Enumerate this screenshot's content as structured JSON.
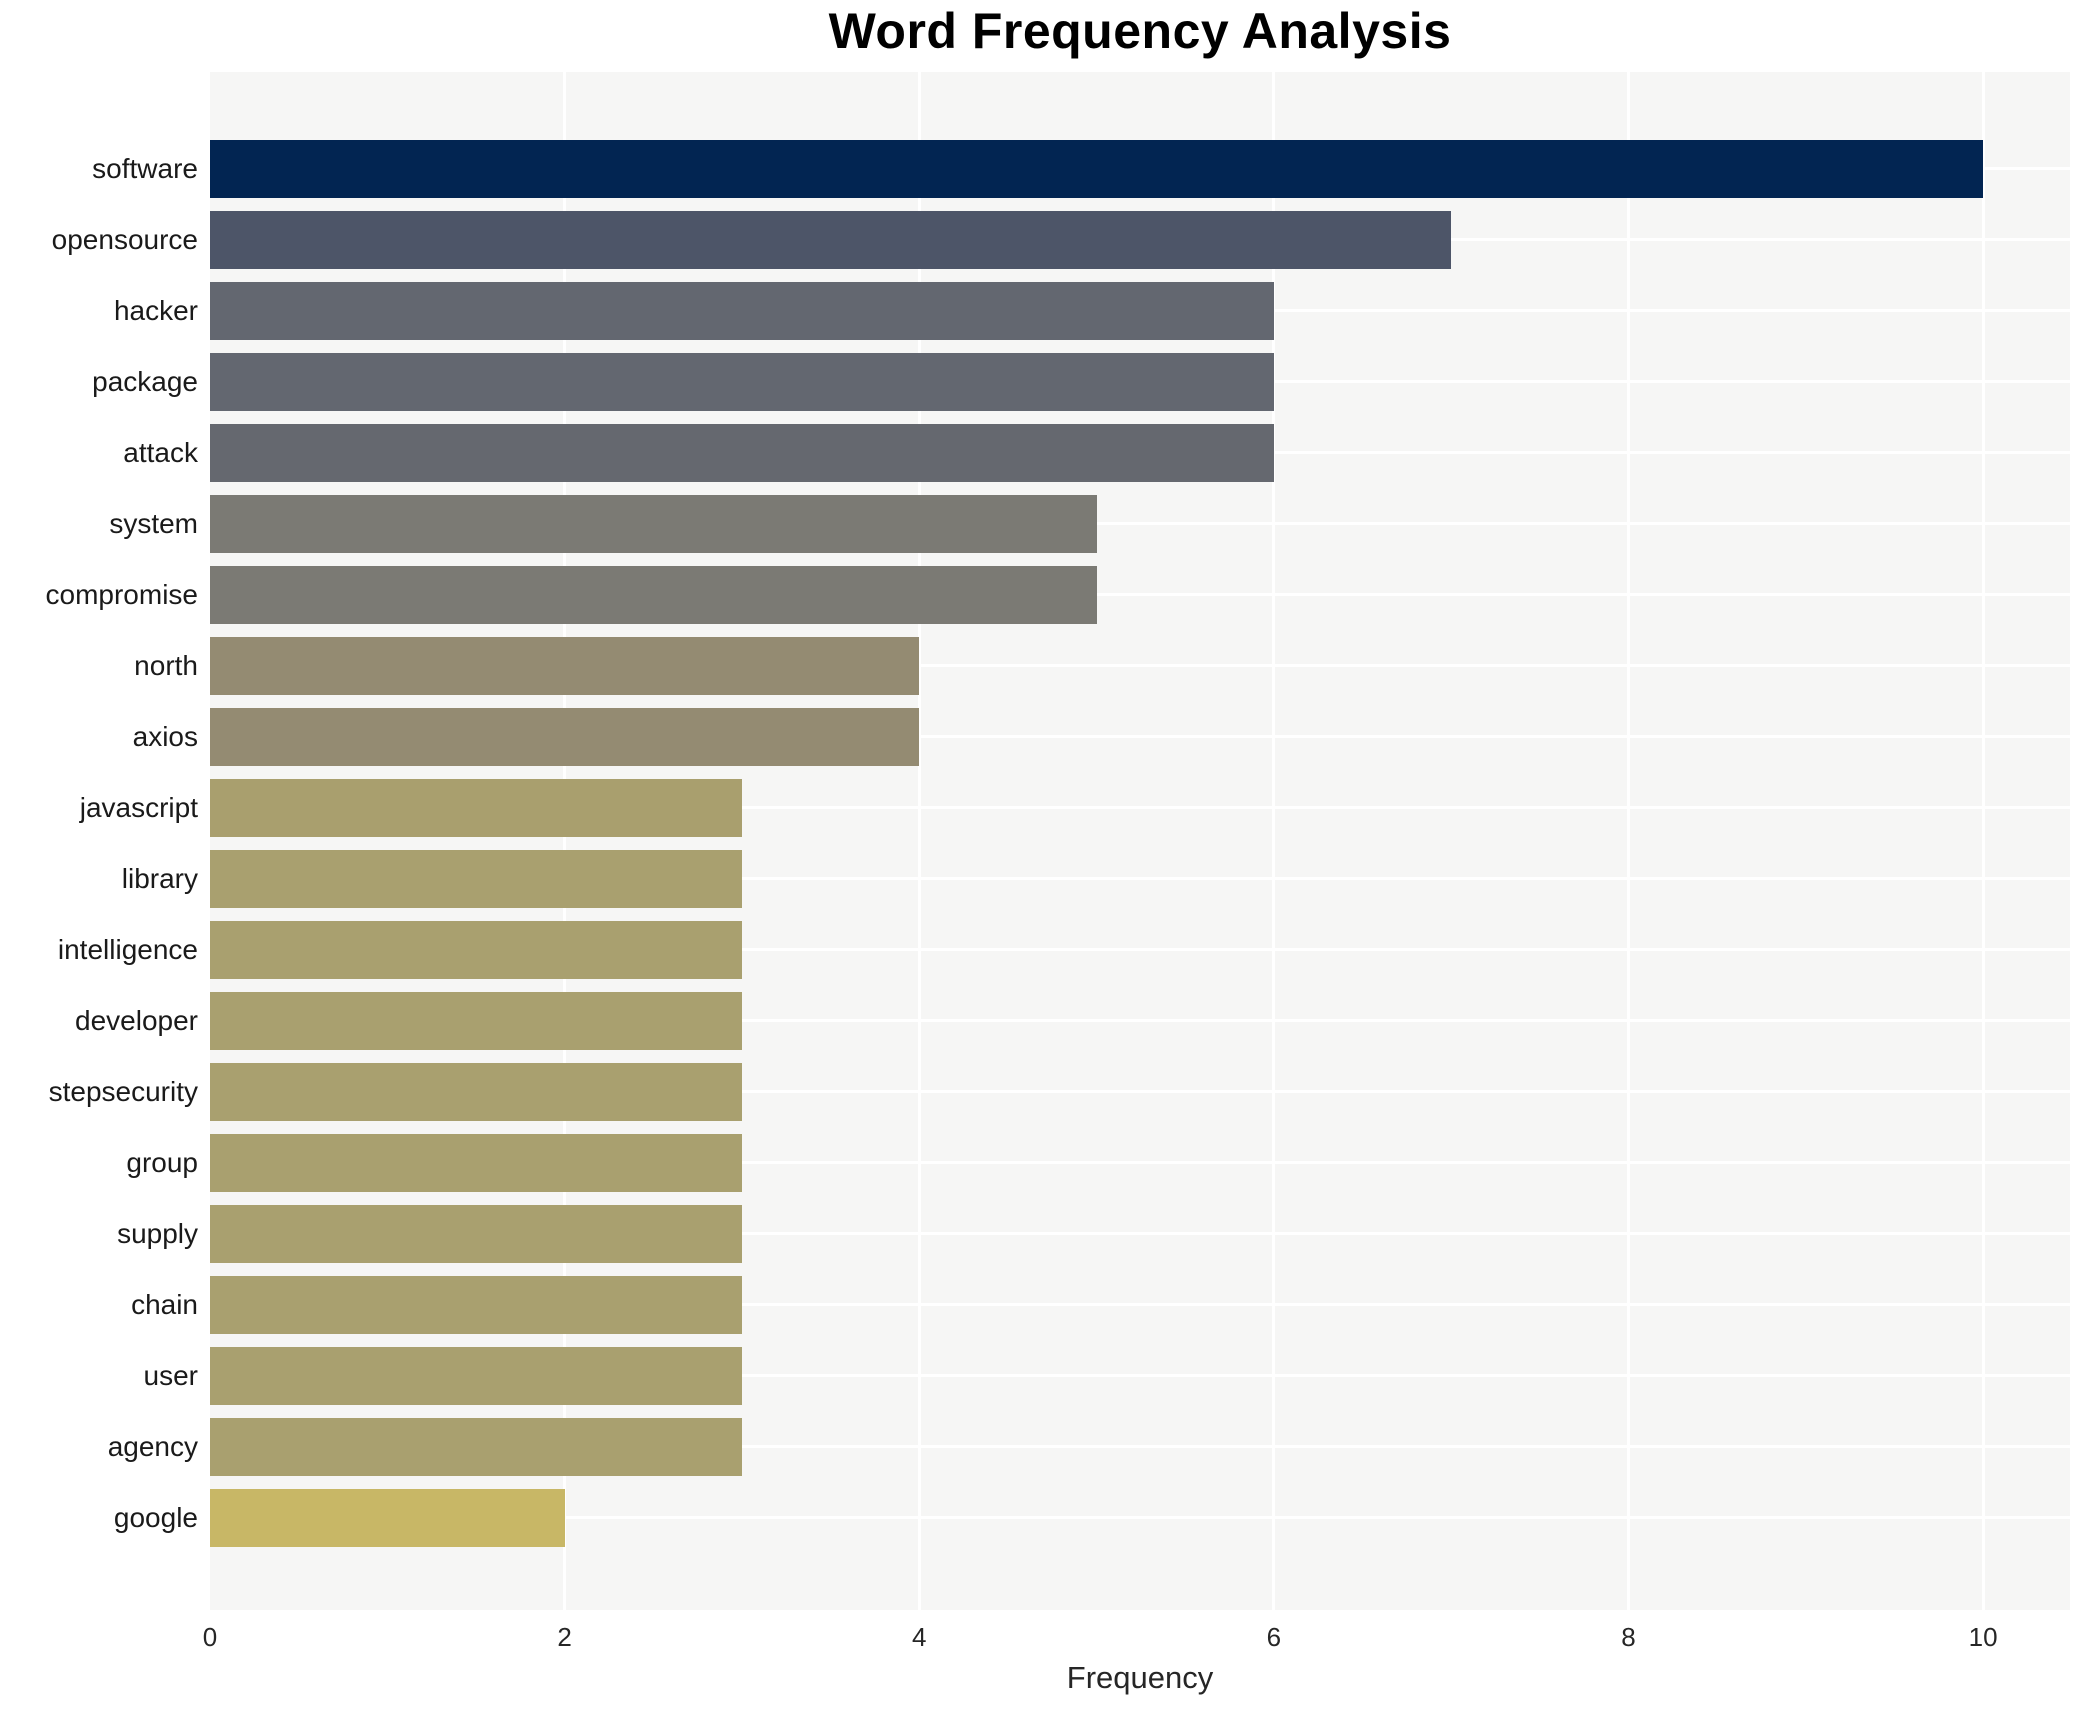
{
  "title": "Word Frequency Analysis",
  "axis": {
    "xlabel": "Frequency",
    "xtick_labels": [
      "0",
      "2",
      "4",
      "6",
      "8",
      "10"
    ]
  },
  "style": {
    "plot_background": "#f6f6f5",
    "grid_color": "#ffffff",
    "figure_background": "#ffffff",
    "color_darkest": "#022552",
    "color_lightest": "#c8b766"
  },
  "chart_data": {
    "type": "bar",
    "orientation": "horizontal",
    "title": "Word Frequency Analysis",
    "xlabel": "Frequency",
    "ylabel": "",
    "xlim": [
      0,
      10.49
    ],
    "xticks": [
      0,
      2,
      4,
      6,
      8,
      10
    ],
    "grid": true,
    "legend": false,
    "categories": [
      "software",
      "opensource",
      "hacker",
      "package",
      "attack",
      "system",
      "compromise",
      "north",
      "axios",
      "javascript",
      "library",
      "intelligence",
      "developer",
      "stepsecurity",
      "group",
      "supply",
      "chain",
      "user",
      "agency",
      "google"
    ],
    "values": [
      10,
      7,
      6,
      6,
      6,
      5,
      5,
      4,
      4,
      3,
      3,
      3,
      3,
      3,
      3,
      3,
      3,
      3,
      3,
      2
    ],
    "bar_colors": [
      "#022552",
      "#4d5568",
      "#636770",
      "#636770",
      "#65686f",
      "#7b7a74",
      "#7b7a74",
      "#948b72",
      "#948b72",
      "#a99f6e",
      "#a9a06f",
      "#a9a06f",
      "#a9a06f",
      "#a9a06f",
      "#a9a06f",
      "#a9a06f",
      "#a9a06f",
      "#a9a06f",
      "#a9a06f",
      "#c8b766"
    ]
  }
}
